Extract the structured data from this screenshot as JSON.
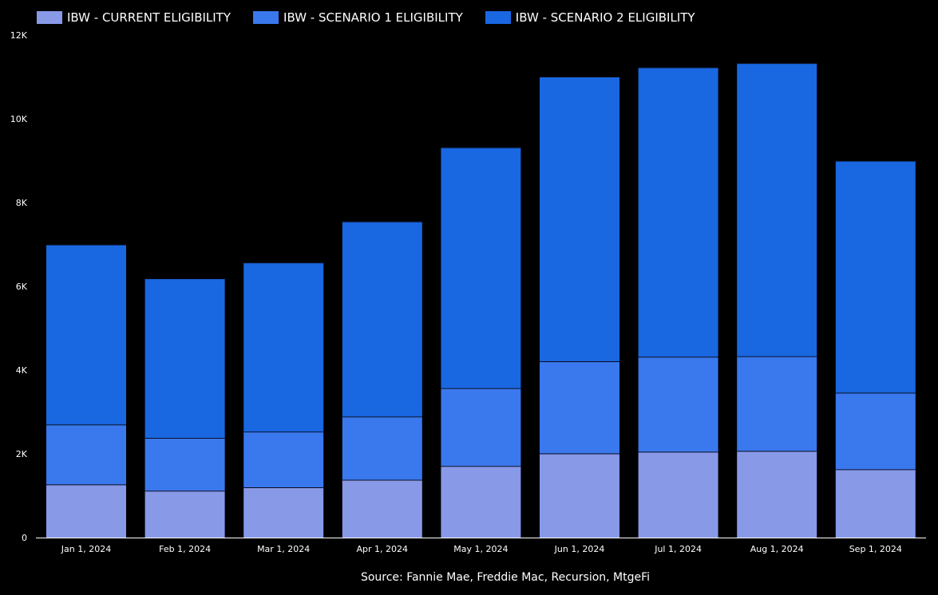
{
  "chart_data": {
    "type": "bar",
    "stacked": true,
    "categories": [
      "Jan 1, 2024",
      "Feb 1, 2024",
      "Mar 1, 2024",
      "Apr 1, 2024",
      "May 1, 2024",
      "Jun 1, 2024",
      "Jul 1, 2024",
      "Aug 1, 2024",
      "Sep 1, 2024"
    ],
    "series": [
      {
        "name": "IBW - CURRENT ELIGIBILITY",
        "color": "#8899e8",
        "values": [
          1270,
          1120,
          1200,
          1380,
          1710,
          2010,
          2050,
          2070,
          1630
        ]
      },
      {
        "name": "IBW - SCENARIO 1 ELIGIBILITY",
        "color": "#3a78ed",
        "values": [
          1430,
          1260,
          1330,
          1510,
          1860,
          2200,
          2270,
          2260,
          1830
        ]
      },
      {
        "name": "IBW - SCENARIO 2 ELIGIBILITY",
        "color": "#1967e1",
        "values": [
          4300,
          3810,
          4040,
          4660,
          5750,
          6800,
          6910,
          7000,
          5540
        ]
      }
    ],
    "ylim": [
      0,
      12000
    ],
    "yticks": [
      0,
      2000,
      4000,
      6000,
      8000,
      10000,
      12000
    ],
    "ytick_labels": [
      "0",
      "2K",
      "4K",
      "6K",
      "8K",
      "10K",
      "12K"
    ],
    "grid": false,
    "legend_position": "top-left",
    "source": "Source: Fannie Mae, Freddie Mac, Recursion, MtgeFi"
  }
}
